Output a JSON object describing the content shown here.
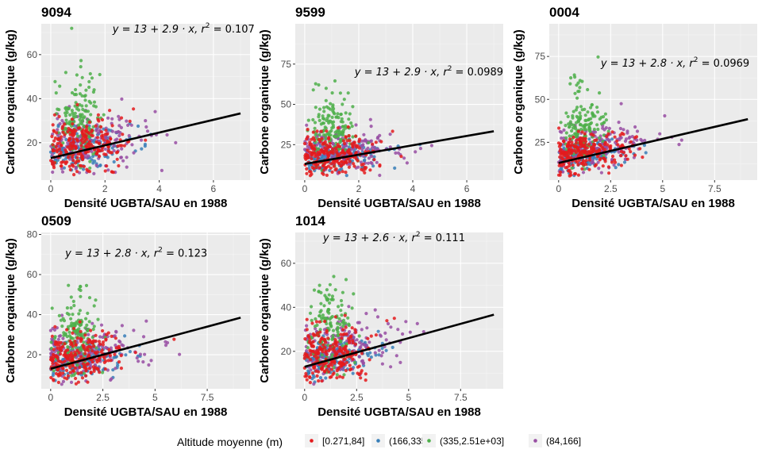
{
  "chart_data": {
    "type": "scatter",
    "xlabel": "Densité UGBTA/SAU en 1988",
    "ylabel": "Carbone organique (g/kg)",
    "legend": {
      "title": "Altitude moyenne (m)",
      "position": "bottom",
      "entries": [
        {
          "label": "[0.271,84]",
          "color": "#e41a1c"
        },
        {
          "label": "(166,335]",
          "color": "#377eb8"
        },
        {
          "label": "(335,2.51e+03]",
          "color": "#4daf4a"
        },
        {
          "label": "(84,166]",
          "color": "#984ea3"
        }
      ]
    },
    "panels": [
      {
        "title": "9094",
        "xlim": [
          -0.35,
          7.35
        ],
        "ylim": [
          3,
          74
        ],
        "xticks": [
          0,
          2,
          4,
          6
        ],
        "yticks": [
          20,
          40,
          60
        ],
        "eq_prefix": "y = 13 + 2.9 · x,  r",
        "eq_r2": "= 0.107",
        "eq_pos": [
          4.9,
          70
        ],
        "fit": {
          "intercept": 13,
          "slope": 2.9,
          "x_range": [
            0,
            7
          ]
        },
        "clouds": [
          {
            "group": 0,
            "n": 230,
            "x_mean": 1.0,
            "x_sd": 0.9,
            "y_mean": 16,
            "y_sd": 7,
            "x_max": 7,
            "y_min": 5
          },
          {
            "group": 1,
            "n": 160,
            "x_mean": 1.1,
            "x_sd": 0.9,
            "y_mean": 15,
            "y_sd": 5,
            "x_max": 5.5,
            "y_min": 5
          },
          {
            "group": 2,
            "n": 150,
            "x_mean": 1.0,
            "x_sd": 0.4,
            "y_mean": 27,
            "y_sd": 11,
            "x_max": 2.5,
            "y_min": 8
          },
          {
            "group": 3,
            "n": 170,
            "x_mean": 1.4,
            "x_sd": 1.2,
            "y_mean": 18,
            "y_sd": 7,
            "x_max": 7,
            "y_min": 5
          }
        ]
      },
      {
        "title": "9599",
        "xlim": [
          -0.35,
          7.35
        ],
        "ylim": [
          3,
          100
        ],
        "xticks": [
          0,
          2,
          4,
          6
        ],
        "yticks": [
          25,
          50,
          75
        ],
        "eq_prefix": "y = 13 + 2.9 · x,  r",
        "eq_r2": "= 0.0989",
        "eq_pos": [
          4.6,
          68
        ],
        "fit": {
          "intercept": 13,
          "slope": 2.9,
          "x_range": [
            0,
            7
          ]
        },
        "clouds": [
          {
            "group": 0,
            "n": 230,
            "x_mean": 1.0,
            "x_sd": 0.9,
            "y_mean": 16,
            "y_sd": 7,
            "x_max": 7,
            "y_min": 5
          },
          {
            "group": 1,
            "n": 160,
            "x_mean": 1.1,
            "x_sd": 0.9,
            "y_mean": 15,
            "y_sd": 5,
            "x_max": 5.8,
            "y_min": 5
          },
          {
            "group": 2,
            "n": 150,
            "x_mean": 1.0,
            "x_sd": 0.4,
            "y_mean": 30,
            "y_sd": 13,
            "x_max": 2.5,
            "y_min": 8
          },
          {
            "group": 3,
            "n": 170,
            "x_mean": 1.4,
            "x_sd": 1.2,
            "y_mean": 18,
            "y_sd": 7,
            "x_max": 7,
            "y_min": 5
          }
        ]
      },
      {
        "title": "0004",
        "xlim": [
          -0.45,
          9.55
        ],
        "ylim": [
          3,
          94
        ],
        "xticks": [
          0,
          2.5,
          5.0,
          7.5
        ],
        "yticks": [
          25,
          50,
          75
        ],
        "eq_prefix": "y = 13 + 2.8 · x,  r",
        "eq_r2": "= 0.0969",
        "eq_pos": [
          5.6,
          69
        ],
        "fit": {
          "intercept": 13,
          "slope": 2.8,
          "x_range": [
            0,
            9.1
          ]
        },
        "clouds": [
          {
            "group": 0,
            "n": 230,
            "x_mean": 1.2,
            "x_sd": 1.1,
            "y_mean": 16,
            "y_sd": 7,
            "x_max": 9.1,
            "y_min": 5
          },
          {
            "group": 1,
            "n": 160,
            "x_mean": 1.3,
            "x_sd": 1.1,
            "y_mean": 15,
            "y_sd": 5,
            "x_max": 7.2,
            "y_min": 5
          },
          {
            "group": 2,
            "n": 150,
            "x_mean": 1.2,
            "x_sd": 0.5,
            "y_mean": 30,
            "y_sd": 13,
            "x_max": 3.5,
            "y_min": 8
          },
          {
            "group": 3,
            "n": 170,
            "x_mean": 1.7,
            "x_sd": 1.5,
            "y_mean": 18,
            "y_sd": 7,
            "x_max": 8,
            "y_min": 5
          }
        ]
      },
      {
        "title": "0509",
        "xlim": [
          -0.45,
          9.55
        ],
        "ylim": [
          3,
          81
        ],
        "xticks": [
          0,
          2.5,
          5.0,
          7.5
        ],
        "yticks": [
          20,
          40,
          60,
          80
        ],
        "eq_prefix": "y = 13 + 2.8 · x,  r",
        "eq_r2": "= 0.123",
        "eq_pos": [
          4.1,
          69
        ],
        "fit": {
          "intercept": 13,
          "slope": 2.8,
          "x_range": [
            0,
            9.1
          ]
        },
        "clouds": [
          {
            "group": 0,
            "n": 230,
            "x_mean": 1.2,
            "x_sd": 1.1,
            "y_mean": 16,
            "y_sd": 7,
            "x_max": 9.1,
            "y_min": 5
          },
          {
            "group": 1,
            "n": 160,
            "x_mean": 1.3,
            "x_sd": 1.1,
            "y_mean": 15,
            "y_sd": 5,
            "x_max": 7,
            "y_min": 5
          },
          {
            "group": 2,
            "n": 150,
            "x_mean": 1.2,
            "x_sd": 0.5,
            "y_mean": 27,
            "y_sd": 11,
            "x_max": 3.5,
            "y_min": 8
          },
          {
            "group": 3,
            "n": 170,
            "x_mean": 1.7,
            "x_sd": 1.5,
            "y_mean": 18,
            "y_sd": 7,
            "x_max": 8,
            "y_min": 5
          }
        ]
      },
      {
        "title": "1014",
        "xlim": [
          -0.45,
          9.55
        ],
        "ylim": [
          3,
          74
        ],
        "xticks": [
          0,
          2.5,
          5.0,
          7.5
        ],
        "yticks": [
          20,
          40,
          60
        ],
        "eq_prefix": "y = 13 + 2.6 · x,  r",
        "eq_r2": "= 0.111",
        "eq_pos": [
          4.3,
          70
        ],
        "fit": {
          "intercept": 13,
          "slope": 2.6,
          "x_range": [
            0,
            9.1
          ]
        },
        "clouds": [
          {
            "group": 0,
            "n": 230,
            "x_mean": 1.2,
            "x_sd": 1.1,
            "y_mean": 16,
            "y_sd": 7,
            "x_max": 9.1,
            "y_min": 5
          },
          {
            "group": 1,
            "n": 160,
            "x_mean": 1.3,
            "x_sd": 1.1,
            "y_mean": 15,
            "y_sd": 5,
            "x_max": 7,
            "y_min": 5
          },
          {
            "group": 2,
            "n": 150,
            "x_mean": 1.2,
            "x_sd": 0.5,
            "y_mean": 27,
            "y_sd": 11,
            "x_max": 3.5,
            "y_min": 8
          },
          {
            "group": 3,
            "n": 170,
            "x_mean": 1.7,
            "x_sd": 1.5,
            "y_mean": 18,
            "y_sd": 7,
            "x_max": 8,
            "y_min": 5
          }
        ]
      }
    ]
  }
}
